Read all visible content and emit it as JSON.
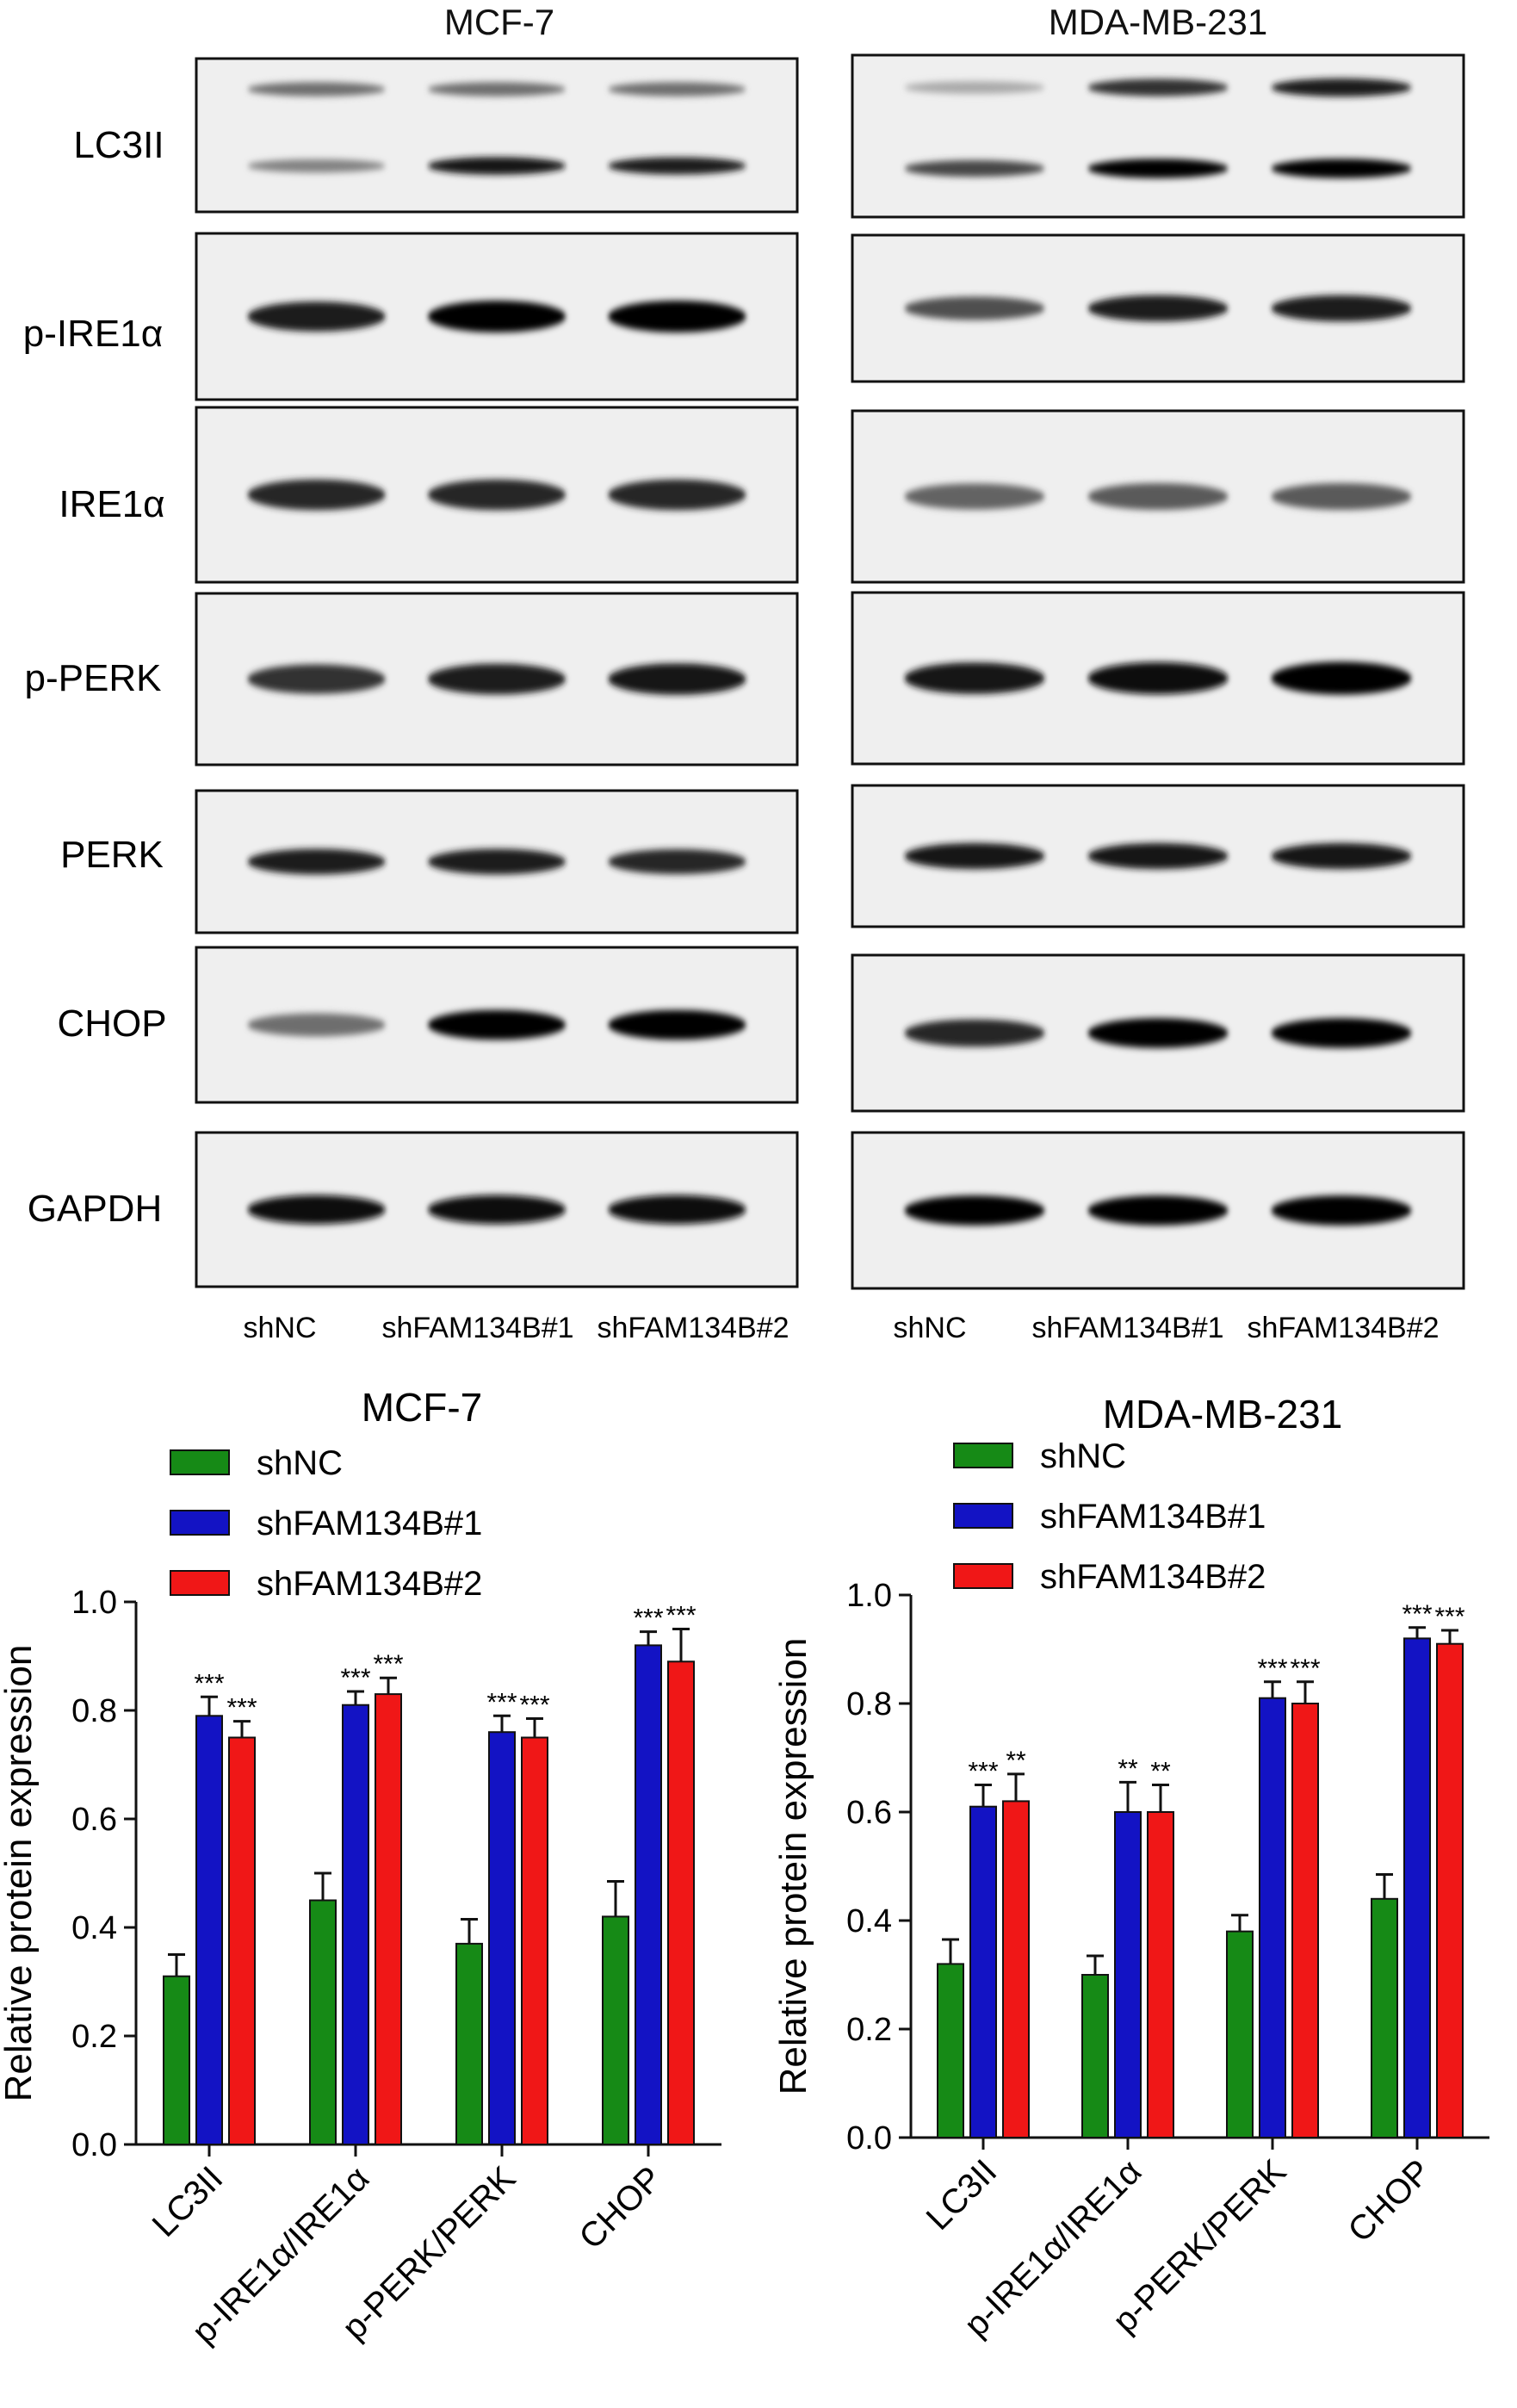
{
  "blot_panels": [
    {
      "cell_line": "MCF-7",
      "proteins": [
        "LC3II",
        "p-IRE1α",
        "IRE1α",
        "p-PERK",
        "PERK",
        "CHOP",
        "GAPDH"
      ],
      "lanes": [
        "shNC",
        "shFAM134B#1",
        "shFAM134B#2"
      ]
    },
    {
      "cell_line": "MDA-MB-231",
      "proteins": [
        "LC3II",
        "p-IRE1α",
        "IRE1α",
        "p-PERK",
        "PERK",
        "CHOP",
        "GAPDH"
      ],
      "lanes": [
        "shNC",
        "shFAM134B#1",
        "shFAM134B#2"
      ]
    }
  ],
  "chart_data": [
    {
      "type": "bar",
      "title": "MCF-7",
      "ylabel": "Relative protein expression",
      "xlabel": "",
      "ylim": [
        0,
        1.0
      ],
      "yticks": [
        "0.0",
        "0.2",
        "0.4",
        "0.6",
        "0.8",
        "1.0"
      ],
      "categories": [
        "LC3II",
        "p-IRE1α/IRE1α",
        "p-PERK/PERK",
        "CHOP"
      ],
      "legend_position": "top-left",
      "series": [
        {
          "name": "shNC",
          "color": "#168a16",
          "values": [
            0.31,
            0.45,
            0.37,
            0.42
          ],
          "errors": [
            0.04,
            0.05,
            0.045,
            0.065
          ],
          "sig": [
            "",
            "",
            "",
            ""
          ]
        },
        {
          "name": "shFAM134B#1",
          "color": "#1313c4",
          "values": [
            0.79,
            0.81,
            0.76,
            0.92
          ],
          "errors": [
            0.035,
            0.025,
            0.03,
            0.025
          ],
          "sig": [
            "***",
            "***",
            "***",
            "***"
          ]
        },
        {
          "name": "shFAM134B#2",
          "color": "#f01717",
          "values": [
            0.75,
            0.83,
            0.75,
            0.89
          ],
          "errors": [
            0.03,
            0.03,
            0.035,
            0.06
          ],
          "sig": [
            "***",
            "***",
            "***",
            "***"
          ]
        }
      ]
    },
    {
      "type": "bar",
      "title": "MDA-MB-231",
      "ylabel": "Relative protein expression",
      "xlabel": "",
      "ylim": [
        0,
        1.0
      ],
      "yticks": [
        "0.0",
        "0.2",
        "0.4",
        "0.6",
        "0.8",
        "1.0"
      ],
      "categories": [
        "LC3II",
        "p-IRE1α/IRE1α",
        "p-PERK/PERK",
        "CHOP"
      ],
      "legend_position": "top-left",
      "series": [
        {
          "name": "shNC",
          "color": "#168a16",
          "values": [
            0.32,
            0.3,
            0.38,
            0.44
          ],
          "errors": [
            0.045,
            0.035,
            0.03,
            0.045
          ],
          "sig": [
            "",
            "",
            "",
            ""
          ]
        },
        {
          "name": "shFAM134B#1",
          "color": "#1313c4",
          "values": [
            0.61,
            0.6,
            0.81,
            0.92
          ],
          "errors": [
            0.04,
            0.055,
            0.03,
            0.02
          ],
          "sig": [
            "***",
            "**",
            "***",
            "***"
          ]
        },
        {
          "name": "shFAM134B#2",
          "color": "#f01717",
          "values": [
            0.62,
            0.6,
            0.8,
            0.91
          ],
          "errors": [
            0.05,
            0.05,
            0.04,
            0.025
          ],
          "sig": [
            "**",
            "**",
            "***",
            "***"
          ]
        }
      ]
    }
  ]
}
